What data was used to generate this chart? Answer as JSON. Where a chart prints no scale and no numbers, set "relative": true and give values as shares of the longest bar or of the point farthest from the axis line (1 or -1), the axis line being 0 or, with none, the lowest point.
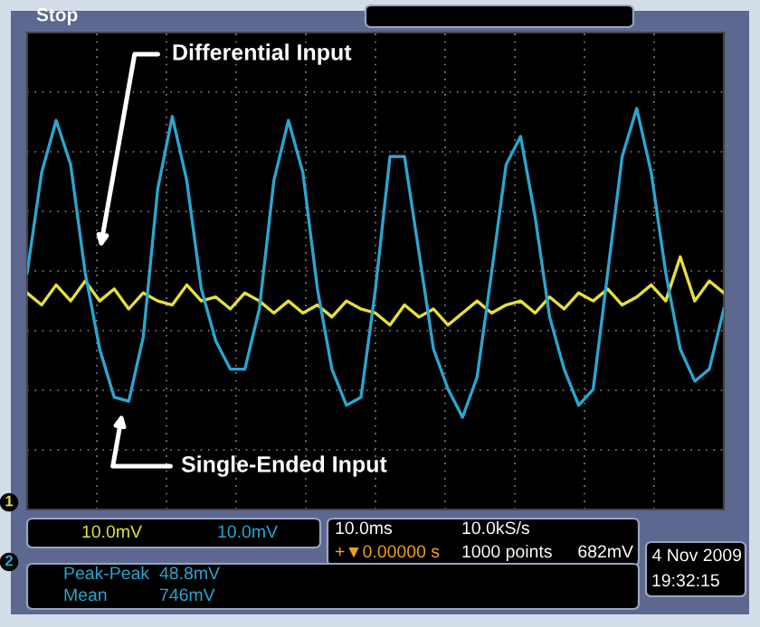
{
  "chart_data": {
    "type": "line",
    "relative": true,
    "grid": true,
    "tick_labels": false,
    "legend": false,
    "marker": "none",
    "line_style": "solid",
    "categories": [
      null,
      null,
      null,
      null,
      null,
      null,
      null,
      null,
      null,
      null,
      null,
      null,
      null,
      null,
      null,
      null,
      null,
      null,
      null,
      null,
      null,
      null,
      null,
      null,
      null,
      null,
      null,
      null,
      null,
      null,
      null,
      null,
      null,
      null,
      null,
      null,
      null,
      null,
      null,
      null,
      null,
      null,
      null,
      null,
      null,
      null,
      null,
      null,
      null
    ],
    "series": [
      {
        "color": "#2ba6cf",
        "values": [
          0.59,
          0.84,
          0.97,
          0.86,
          0.59,
          0.4,
          0.28,
          0.27,
          0.43,
          0.8,
          0.98,
          0.82,
          0.55,
          0.42,
          0.35,
          0.35,
          0.5,
          0.82,
          0.97,
          0.84,
          0.55,
          0.35,
          0.26,
          0.28,
          0.55,
          0.88,
          0.88,
          0.64,
          0.4,
          0.3,
          0.23,
          0.33,
          0.59,
          0.86,
          0.93,
          0.73,
          0.48,
          0.35,
          0.26,
          0.3,
          0.59,
          0.88,
          1,
          0.84,
          0.59,
          0.4,
          0.32,
          0.35,
          0.5
        ]
      },
      {
        "color": "#e6e03c",
        "values": [
          0.54,
          0.51,
          0.56,
          0.52,
          0.57,
          0.52,
          0.55,
          0.5,
          0.54,
          0.52,
          0.51,
          0.56,
          0.52,
          0.53,
          0.5,
          0.54,
          0.52,
          0.49,
          0.52,
          0.49,
          0.51,
          0.48,
          0.52,
          0.5,
          0.49,
          0.46,
          0.51,
          0.48,
          0.5,
          0.46,
          0.49,
          0.52,
          0.49,
          0.51,
          0.52,
          0.49,
          0.53,
          0.5,
          0.54,
          0.52,
          0.55,
          0.51,
          0.53,
          0.56,
          0.52,
          0.63,
          0.52,
          0.57,
          0.54
        ]
      }
    ],
    "annotations": [
      "Differential Input",
      "Single-Ended Input",
      "Stop",
      "1",
      "2",
      "10.0mV",
      "10.0mV",
      "10.0ms",
      "10.0kS/s",
      "+▼0.00000 s",
      "1000 points",
      "682mV",
      "Peak-Peak",
      "48.8mV",
      "Mean",
      "746mV",
      "4 Nov 2009",
      "19:32:15"
    ]
  }
}
